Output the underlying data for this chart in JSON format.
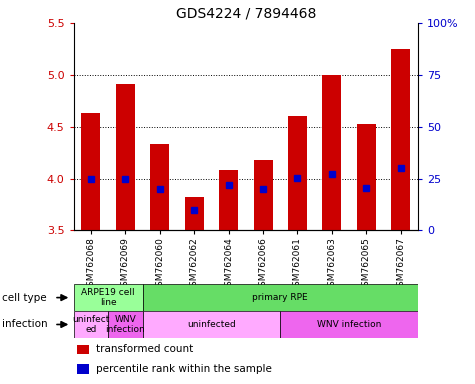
{
  "title": "GDS4224 / 7894468",
  "samples": [
    "GSM762068",
    "GSM762069",
    "GSM762060",
    "GSM762062",
    "GSM762064",
    "GSM762066",
    "GSM762061",
    "GSM762063",
    "GSM762065",
    "GSM762067"
  ],
  "transformed_count": [
    4.63,
    4.91,
    4.33,
    3.82,
    4.08,
    4.18,
    4.6,
    5.0,
    4.53,
    5.25
  ],
  "percentile_rank": [
    25.0,
    25.0,
    20.0,
    10.0,
    22.0,
    20.0,
    25.5,
    27.0,
    20.5,
    30.0
  ],
  "bar_bottom": 3.5,
  "ylim": [
    3.5,
    5.5
  ],
  "percentile_ylim": [
    0,
    100
  ],
  "yticks_left": [
    3.5,
    4.0,
    4.5,
    5.0,
    5.5
  ],
  "yticks_right": [
    0,
    25,
    50,
    75,
    100
  ],
  "ytick_labels_right": [
    "0",
    "25",
    "50",
    "75",
    "100%"
  ],
  "red_color": "#cc0000",
  "blue_color": "#0000cc",
  "bar_width": 0.55,
  "cell_type_groups": [
    {
      "label": "ARPE19 cell\nline",
      "start": 0,
      "end": 2,
      "color": "#99ff99"
    },
    {
      "label": "primary RPE",
      "start": 2,
      "end": 10,
      "color": "#66dd66"
    }
  ],
  "infection_groups": [
    {
      "label": "uninfect\ned",
      "start": 0,
      "end": 1,
      "color": "#ffaaff"
    },
    {
      "label": "WNV\ninfection",
      "start": 1,
      "end": 2,
      "color": "#ee66ee"
    },
    {
      "label": "uninfected",
      "start": 2,
      "end": 6,
      "color": "#ffaaff"
    },
    {
      "label": "WNV infection",
      "start": 6,
      "end": 10,
      "color": "#ee66ee"
    }
  ],
  "legend_items": [
    {
      "color": "#cc0000",
      "label": "transformed count"
    },
    {
      "color": "#0000cc",
      "label": "percentile rank within the sample"
    }
  ],
  "gridline_y": [
    4.0,
    4.5,
    5.0
  ],
  "cell_type_label": "cell type",
  "infection_label": "infection"
}
